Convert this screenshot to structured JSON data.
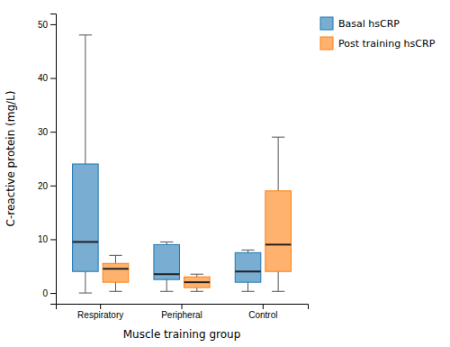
{
  "chart_data": {
    "type": "box",
    "xlabel": "Muscle training group",
    "ylabel": "C-reactive protein (mg/L)",
    "categories": [
      "Respiratory",
      "Peripheral",
      "Control"
    ],
    "series": [
      {
        "name": "Basal hsCRP",
        "values": [
          {
            "whislo": 0,
            "q1": 4,
            "med": 9.5,
            "q3": 24,
            "whishi": 48
          },
          {
            "whislo": 0.3,
            "q1": 2.5,
            "med": 3.5,
            "q3": 9,
            "whishi": 9.5
          },
          {
            "whislo": 0.3,
            "q1": 2,
            "med": 4,
            "q3": 7.5,
            "whishi": 8
          }
        ]
      },
      {
        "name": "Post training hsCRP",
        "values": [
          {
            "whislo": 0.3,
            "q1": 2,
            "med": 4.5,
            "q3": 5.5,
            "whishi": 7
          },
          {
            "whislo": 0.3,
            "q1": 1,
            "med": 2,
            "q3": 3,
            "whishi": 3.5
          },
          {
            "whislo": 0.3,
            "q1": 4,
            "med": 9,
            "q3": 19,
            "whishi": 29
          }
        ]
      }
    ],
    "ylim": [
      -2,
      52
    ],
    "yticks": [
      0,
      10,
      20,
      30,
      40,
      50
    ],
    "grid": false,
    "legend": "right"
  }
}
